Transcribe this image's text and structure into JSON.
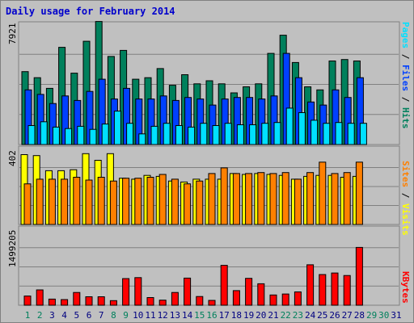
{
  "title": "Daily usage for February 2014",
  "colors": {
    "hits": "#00805c",
    "files": "#0040ff",
    "pages": "#00e0ff",
    "visits": "#ffff00",
    "sites": "#ff8000",
    "kbytes": "#ff0000",
    "background": "#c0c0c0",
    "weekday_label": "#000080",
    "weekend_label": "#00805c"
  },
  "legends": {
    "top": [
      {
        "text": "Pages",
        "color": "#00e0ff"
      },
      {
        "text": " / ",
        "color": "#000000"
      },
      {
        "text": "Files",
        "color": "#0040ff"
      },
      {
        "text": " / ",
        "color": "#000000"
      },
      {
        "text": "Hits",
        "color": "#00805c"
      }
    ],
    "middle": [
      {
        "text": "Sites",
        "color": "#ff8000"
      },
      {
        "text": " / ",
        "color": "#000000"
      },
      {
        "text": "Visits",
        "color": "#ffff00"
      }
    ],
    "bottom": [
      {
        "text": "KBytes",
        "color": "#ff0000"
      }
    ]
  },
  "chart_data": {
    "type": "bar",
    "title": "Daily usage for February 2014",
    "days": [
      "1",
      "2",
      "3",
      "4",
      "5",
      "6",
      "7",
      "8",
      "9",
      "10",
      "11",
      "12",
      "13",
      "14",
      "15",
      "16",
      "17",
      "18",
      "19",
      "20",
      "21",
      "22",
      "23",
      "24",
      "25",
      "26",
      "27",
      "28",
      "29",
      "30",
      "31"
    ],
    "weekend_days": [
      "1",
      "2",
      "8",
      "9",
      "15",
      "16",
      "22",
      "23",
      "29",
      "30"
    ],
    "panels": [
      {
        "id": "hits-files-pages",
        "ymax_label": "7921",
        "ymax": 7921,
        "series": [
          {
            "name": "Hits",
            "color": "#00805c",
            "values": [
              4800,
              4400,
              3700,
              6400,
              4700,
              6800,
              8100,
              5800,
              6200,
              4300,
              4400,
              5000,
              3900,
              4600,
              4000,
              4200,
              4000,
              3400,
              3800,
              4000,
              6000,
              7200,
              5400,
              3800,
              3600,
              5500,
              5600,
              5500
            ]
          },
          {
            "name": "Files",
            "color": "#0040ff",
            "values": [
              3600,
              3300,
              2700,
              3200,
              2900,
              3500,
              4300,
              3000,
              3700,
              3000,
              3000,
              3200,
              2900,
              3100,
              3000,
              2600,
              3000,
              3100,
              3100,
              3000,
              3200,
              6000,
              4400,
              2800,
              2600,
              3600,
              3100,
              4400
            ]
          },
          {
            "name": "Pages",
            "color": "#00e0ff",
            "values": [
              1250,
              1500,
              1150,
              1050,
              1200,
              1000,
              1350,
              2200,
              1400,
              700,
              1200,
              1400,
              1250,
              1150,
              1400,
              1250,
              1400,
              1300,
              1300,
              1400,
              1450,
              2400,
              2100,
              1600,
              1400,
              1450,
              1400,
              1400
            ]
          }
        ]
      },
      {
        "id": "visits-sites",
        "ymax_label": "402",
        "ymax": 402,
        "series": [
          {
            "name": "Visits",
            "color": "#ffff00",
            "values": [
              370,
              365,
              285,
              285,
              290,
              375,
              340,
              375,
              245,
              240,
              260,
              255,
              230,
              225,
              240,
              240,
              240,
              270,
              265,
              270,
              265,
              260,
              240,
              255,
              260,
              260,
              250,
              255
            ]
          },
          {
            "name": "Sites",
            "color": "#ff8000",
            "values": [
              215,
              240,
              240,
              240,
              250,
              235,
              250,
              230,
              245,
              245,
              250,
              265,
              240,
              215,
              230,
              270,
              300,
              270,
              270,
              275,
              270,
              275,
              240,
              275,
              330,
              270,
              275,
              330
            ]
          }
        ]
      },
      {
        "id": "kbytes",
        "ymax_label": "1499205",
        "ymax": 1499205,
        "series": [
          {
            "name": "KBytes",
            "color": "#ff0000",
            "values": [
              180000,
              300000,
              120000,
              110000,
              250000,
              165000,
              165000,
              90000,
              520000,
              540000,
              150000,
              100000,
              250000,
              530000,
              170000,
              95000,
              780000,
              285000,
              525000,
              420000,
              200000,
              220000,
              260000,
              790000,
              600000,
              630000,
              580000,
              1130000
            ]
          }
        ]
      }
    ]
  }
}
